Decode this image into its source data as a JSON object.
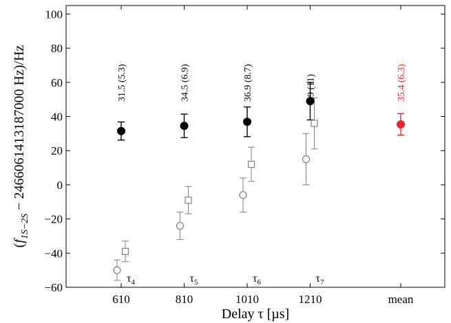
{
  "chart_data": {
    "type": "scatter",
    "xlabel": "Delay τ [µs]",
    "ylabel": "(f1S−2S − 2466061413187000 Hz)/Hz",
    "ylabel_parts": {
      "open": "(",
      "f": "f",
      "sub": "1S−2S",
      "rest": " − 2466061413187000 Hz)/Hz"
    },
    "ylim": [
      -60,
      105
    ],
    "yticks": [
      -60,
      -40,
      -20,
      0,
      20,
      40,
      60,
      80,
      100
    ],
    "categories": [
      "610",
      "810",
      "1010",
      "1210",
      "mean"
    ],
    "grid": false,
    "series": [
      {
        "marker": "filled-circle",
        "color": "#000000",
        "points": [
          {
            "category": "610",
            "y": 31.5,
            "err": 5.3
          },
          {
            "category": "810",
            "y": 34.5,
            "err": 6.9
          },
          {
            "category": "1010",
            "y": 36.9,
            "err": 8.7
          },
          {
            "category": "1210",
            "y": 49,
            "err": 11
          }
        ]
      },
      {
        "marker": "filled-circle",
        "color": "#e8262a",
        "points": [
          {
            "category": "mean",
            "y": 35.4,
            "err": 6.3
          }
        ]
      },
      {
        "marker": "open-circle",
        "color": "#808080",
        "points": [
          {
            "category": "610",
            "y": -50,
            "err": 6
          },
          {
            "category": "810",
            "y": -24,
            "err": 8
          },
          {
            "category": "1010",
            "y": -6,
            "err": 10
          },
          {
            "category": "1210",
            "y": 15,
            "err": 15
          }
        ]
      },
      {
        "marker": "open-square",
        "color": "#808080",
        "points": [
          {
            "category": "610",
            "y": -39,
            "err": 6
          },
          {
            "category": "810",
            "y": -9,
            "err": 8
          },
          {
            "category": "1010",
            "y": 12,
            "err": 10
          },
          {
            "category": "1210",
            "y": 36,
            "err": 15
          }
        ]
      }
    ],
    "annotations": [
      {
        "text": "31.5 (5.3)",
        "category": "610",
        "color": "#000000"
      },
      {
        "text": "34.5 (6.9)",
        "category": "810",
        "color": "#000000"
      },
      {
        "text": "36.9 (8.7)",
        "category": "1010",
        "color": "#000000"
      },
      {
        "text": "49 (11)",
        "category": "1210",
        "color": "#000000"
      },
      {
        "text": "35.4 (6.3)",
        "category": "mean",
        "color": "#e8262a"
      }
    ],
    "tau_labels": [
      {
        "base": "τ",
        "sub": "4",
        "category": "610"
      },
      {
        "base": "τ",
        "sub": "5",
        "category": "810"
      },
      {
        "base": "τ",
        "sub": "6",
        "category": "1010"
      },
      {
        "base": "τ",
        "sub": "7",
        "category": "1210"
      }
    ]
  }
}
